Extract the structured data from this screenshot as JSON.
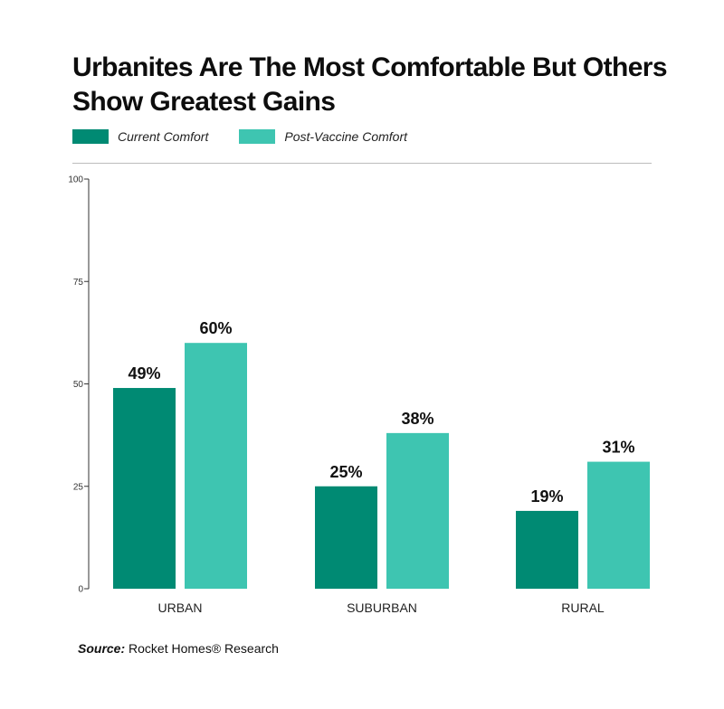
{
  "chart_data": {
    "type": "bar",
    "title": "Urbanites Are The Most Comfortable But Others Show Greatest Gains",
    "categories": [
      "URBAN",
      "SUBURBAN",
      "RURAL"
    ],
    "series": [
      {
        "name": "Current Comfort",
        "values": [
          49,
          25,
          19
        ],
        "labels": [
          "49%",
          "25%",
          "19%"
        ],
        "color": "#008a73"
      },
      {
        "name": "Post-Vaccine Comfort",
        "values": [
          60,
          38,
          31
        ],
        "labels": [
          "60%",
          "38%",
          "31%"
        ],
        "color": "#3ec5b1"
      }
    ],
    "ylim": [
      0,
      100
    ],
    "yticks": [
      0,
      25,
      50,
      75,
      100
    ],
    "xlabel": "",
    "ylabel": "",
    "legend_position": "top-left"
  },
  "legend": {
    "current_label": "Current Comfort",
    "post_label": "Post-Vaccine Comfort"
  },
  "source": {
    "prefix": "Source:",
    "text": "Rocket Homes® Research"
  }
}
